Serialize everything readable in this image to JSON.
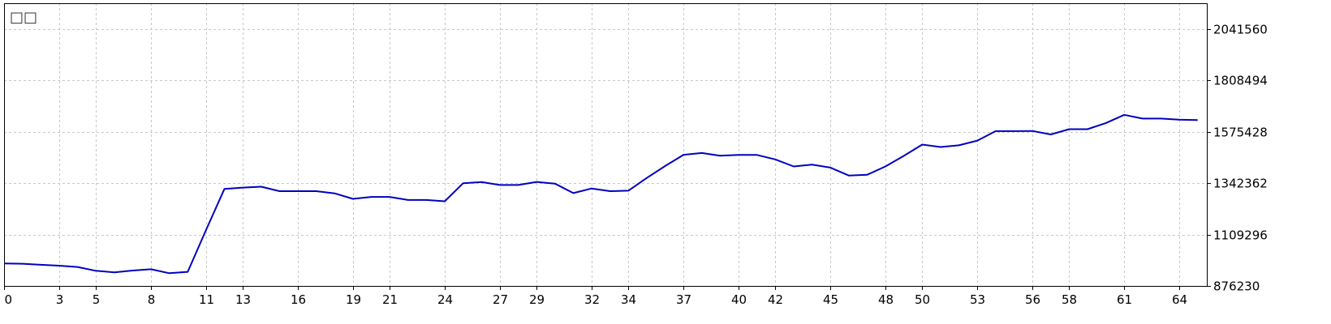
{
  "chart_data": {
    "type": "line",
    "title": "□□",
    "xlabel": "",
    "ylabel": "",
    "grid": true,
    "x_ticks": [
      "0",
      "3",
      "5",
      "8",
      "11",
      "13",
      "16",
      "19",
      "21",
      "24",
      "27",
      "29",
      "32",
      "34",
      "37",
      "40",
      "42",
      "45",
      "48",
      "50",
      "53",
      "56",
      "58",
      "61",
      "64"
    ],
    "y_ticks": [
      "876230",
      "1109296",
      "1342362",
      "1575428",
      "1808494",
      "2041560"
    ],
    "xlim": [
      0,
      65.5
    ],
    "ylim": [
      876230,
      2158093
    ],
    "colors": {
      "line": "#0000bf",
      "grid": "#c8c8c8",
      "frame": "#000000"
    },
    "series": [
      {
        "x": [
          0,
          1,
          2,
          3,
          4,
          5,
          6,
          7,
          8,
          9,
          10,
          11,
          12,
          13,
          14,
          15,
          16,
          17,
          18,
          19,
          20,
          21,
          22,
          23,
          24,
          25,
          26,
          27,
          28,
          29,
          30,
          31,
          32,
          33,
          34,
          35,
          36,
          37,
          38,
          39,
          40,
          41,
          42,
          43,
          44,
          45,
          46,
          47,
          48,
          49,
          50,
          51,
          52,
          53,
          54,
          55,
          56,
          57,
          58,
          59,
          60,
          61,
          62,
          63,
          64,
          65
        ],
        "y": [
          978000,
          977000,
          972000,
          968000,
          962000,
          945000,
          938000,
          946000,
          952000,
          934000,
          940000,
          1130000,
          1316000,
          1322000,
          1326000,
          1306000,
          1306000,
          1306000,
          1296000,
          1271000,
          1280000,
          1280000,
          1266000,
          1266000,
          1260000,
          1342000,
          1347000,
          1334000,
          1334000,
          1348000,
          1340000,
          1297000,
          1318000,
          1306000,
          1308000,
          1366000,
          1420000,
          1471000,
          1479000,
          1467000,
          1470000,
          1470000,
          1450000,
          1418000,
          1426000,
          1413000,
          1377000,
          1380000,
          1418000,
          1466000,
          1517000,
          1506000,
          1514000,
          1535000,
          1578000,
          1578000,
          1579000,
          1563000,
          1587000,
          1587000,
          1615000,
          1652000,
          1635000,
          1635000,
          1630000,
          1628000
        ]
      }
    ]
  }
}
